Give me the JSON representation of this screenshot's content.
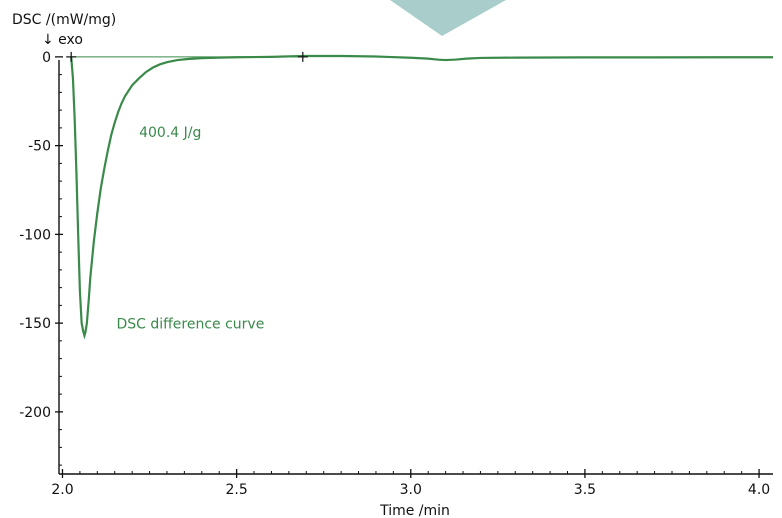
{
  "chart_data": {
    "type": "line",
    "ylabel": "DSC /(mW/mg)",
    "ylabel_note": "↓ exo",
    "xlabel": "Time /min",
    "xlim": [
      1.99,
      4.04
    ],
    "ylim": [
      -235,
      5
    ],
    "x_ticks": [
      2.0,
      2.5,
      3.0,
      3.5,
      4.0
    ],
    "x_tick_labels": [
      "2.0",
      "2.5",
      "3.0",
      "3.5",
      "4.0"
    ],
    "y_ticks": [
      0,
      -50,
      -100,
      -150,
      -200
    ],
    "y_tick_labels": [
      "0",
      "-50",
      "-100",
      "-150",
      "-200"
    ],
    "grid": false,
    "colors": {
      "curve": "#3a8a4a",
      "annotation": "#3a8a4a",
      "axis": "#111111",
      "decor": "#a9cdca"
    },
    "series": [
      {
        "name": "DSC difference curve",
        "x": [
          2.025,
          2.03,
          2.035,
          2.04,
          2.045,
          2.05,
          2.055,
          2.06,
          2.063,
          2.066,
          2.07,
          2.075,
          2.08,
          2.09,
          2.1,
          2.11,
          2.12,
          2.13,
          2.14,
          2.15,
          2.16,
          2.17,
          2.18,
          2.2,
          2.22,
          2.24,
          2.26,
          2.28,
          2.3,
          2.33,
          2.36,
          2.4,
          2.45,
          2.5,
          2.55,
          2.6,
          2.65,
          2.7,
          2.8,
          2.9,
          3.0,
          3.05,
          3.08,
          3.1,
          3.13,
          3.16,
          3.2,
          3.3,
          3.5,
          3.7,
          3.9,
          4.04
        ],
        "y": [
          0,
          -12,
          -35,
          -65,
          -100,
          -132,
          -150,
          -155,
          -157,
          -155,
          -150,
          -138,
          -124,
          -104,
          -88,
          -74,
          -63,
          -53,
          -44,
          -37,
          -31,
          -26,
          -22,
          -16,
          -12,
          -8.5,
          -6,
          -4.2,
          -3,
          -1.8,
          -1.2,
          -0.7,
          -0.4,
          -0.2,
          -0.1,
          0,
          0.3,
          0.5,
          0.5,
          0.2,
          -0.5,
          -1.0,
          -1.6,
          -1.8,
          -1.5,
          -1.0,
          -0.6,
          -0.4,
          -0.3,
          -0.3,
          -0.2,
          -0.2
        ]
      }
    ],
    "baseline": {
      "x": [
        2.025,
        2.69
      ],
      "y": [
        0,
        0
      ]
    },
    "markers": [
      {
        "x": 2.025,
        "y": 0
      },
      {
        "x": 2.69,
        "y": 0
      }
    ],
    "annotations": [
      {
        "text": "400.4 J/g",
        "x": 2.22,
        "y": -45
      },
      {
        "text": "DSC difference curve",
        "x": 2.155,
        "y": -153
      }
    ]
  }
}
